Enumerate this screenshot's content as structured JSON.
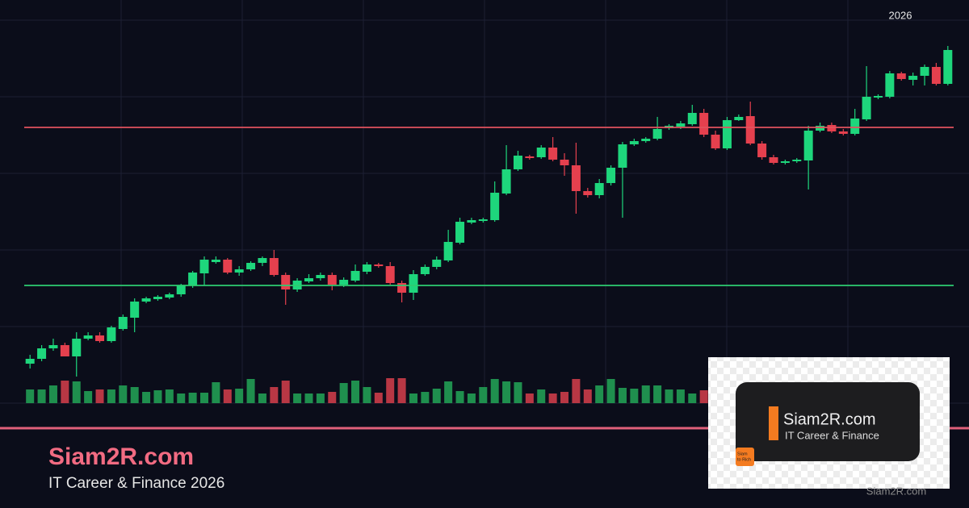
{
  "chart_data": {
    "type": "candlestick",
    "label": "2026",
    "open": [
      49,
      55,
      68,
      72,
      58,
      80,
      84,
      77,
      92,
      106,
      126,
      129,
      131,
      135,
      146,
      161,
      175,
      178,
      162,
      166,
      174,
      180,
      159,
      141,
      151,
      155,
      159,
      147,
      152,
      163,
      172,
      170,
      149,
      137,
      160,
      169,
      177,
      199,
      224,
      226,
      227,
      260,
      290,
      306,
      305,
      317,
      302,
      295,
      263,
      258,
      273,
      292,
      321,
      325,
      328,
      341,
      343,
      346,
      360,
      333,
      316,
      351,
      356,
      322,
      305,
      298,
      300,
      301,
      338,
      345,
      337,
      334,
      352,
      379,
      380,
      409,
      401,
      406,
      417,
      396
    ],
    "high": [
      60,
      72,
      80,
      75,
      88,
      88,
      88,
      96,
      110,
      130,
      132,
      134,
      137,
      148,
      164,
      182,
      182,
      180,
      170,
      176,
      182,
      190,
      162,
      155,
      160,
      162,
      162,
      156,
      172,
      175,
      174,
      175,
      152,
      165,
      172,
      182,
      215,
      230,
      230,
      230,
      275,
      320,
      313,
      308,
      320,
      330,
      310,
      323,
      267,
      278,
      295,
      324,
      328,
      330,
      355,
      346,
      350,
      370,
      365,
      338,
      355,
      358,
      374,
      325,
      308,
      302,
      304,
      344,
      348,
      348,
      340,
      365,
      418,
      383,
      412,
      411,
      410,
      420,
      422,
      443
    ],
    "low": [
      43,
      52,
      65,
      58,
      33,
      78,
      75,
      75,
      90,
      88,
      124,
      127,
      129,
      132,
      143,
      146,
      173,
      160,
      158,
      164,
      170,
      157,
      122,
      138,
      149,
      152,
      140,
      144,
      150,
      160,
      168,
      147,
      125,
      128,
      158,
      166,
      175,
      197,
      222,
      224,
      225,
      258,
      288,
      302,
      303,
      300,
      282,
      235,
      255,
      254,
      270,
      230,
      319,
      323,
      326,
      339,
      340,
      344,
      330,
      314,
      314,
      350,
      320,
      302,
      296,
      296,
      298,
      265,
      336,
      335,
      332,
      332,
      350,
      377,
      378,
      400,
      394,
      394,
      394,
      394
    ],
    "close": [
      55,
      68,
      72,
      58,
      80,
      84,
      77,
      94,
      107,
      126,
      130,
      132,
      135,
      146,
      162,
      178,
      178,
      162,
      166,
      174,
      180,
      159,
      141,
      152,
      155,
      159,
      147,
      153,
      164,
      172,
      170,
      149,
      137,
      160,
      169,
      178,
      200,
      225,
      227,
      228,
      261,
      290,
      307,
      304,
      317,
      302,
      295,
      263,
      258,
      273,
      292,
      321,
      325,
      328,
      340,
      344,
      347,
      360,
      333,
      316,
      351,
      355,
      322,
      305,
      298,
      300,
      302,
      338,
      344,
      337,
      334,
      353,
      380,
      381,
      409,
      402,
      406,
      417,
      396,
      438
    ],
    "volume": [
      17,
      17,
      22,
      28,
      27,
      15,
      17,
      17,
      22,
      20,
      14,
      16,
      17,
      12,
      13,
      13,
      26,
      17,
      18,
      30,
      12,
      20,
      28,
      12,
      12,
      12,
      14,
      25,
      28,
      20,
      13,
      31,
      31,
      12,
      14,
      18,
      27,
      15,
      12,
      20,
      30,
      27,
      26,
      12,
      17,
      12,
      14,
      30,
      17,
      22,
      30,
      19,
      18,
      22,
      22,
      17,
      17,
      12,
      16,
      null,
      null,
      null,
      null,
      null,
      null,
      null,
      null,
      null,
      null,
      null,
      null,
      null,
      null,
      null,
      null,
      null,
      null,
      null,
      null,
      null
    ],
    "up_color": "#1ed67c",
    "down_color": "#e5404e",
    "volume_up_color": "#1f8f4e",
    "volume_down_color": "#b83744",
    "ylim": [
      0,
      500
    ],
    "grid": true,
    "hlines": [
      {
        "value": 342,
        "color": "#e2525e"
      },
      {
        "value": 146,
        "color": "#2ecc71"
      }
    ]
  },
  "footer": {
    "title": "Siam2R.com",
    "subtitle": "IT Career & Finance 2026"
  },
  "logo": {
    "title": "Siam2R.com",
    "subtitle": "IT Career & Finance",
    "badge_top": "Siam",
    "badge_bottom": "to Rich",
    "watermark": "Siam2R.com"
  }
}
